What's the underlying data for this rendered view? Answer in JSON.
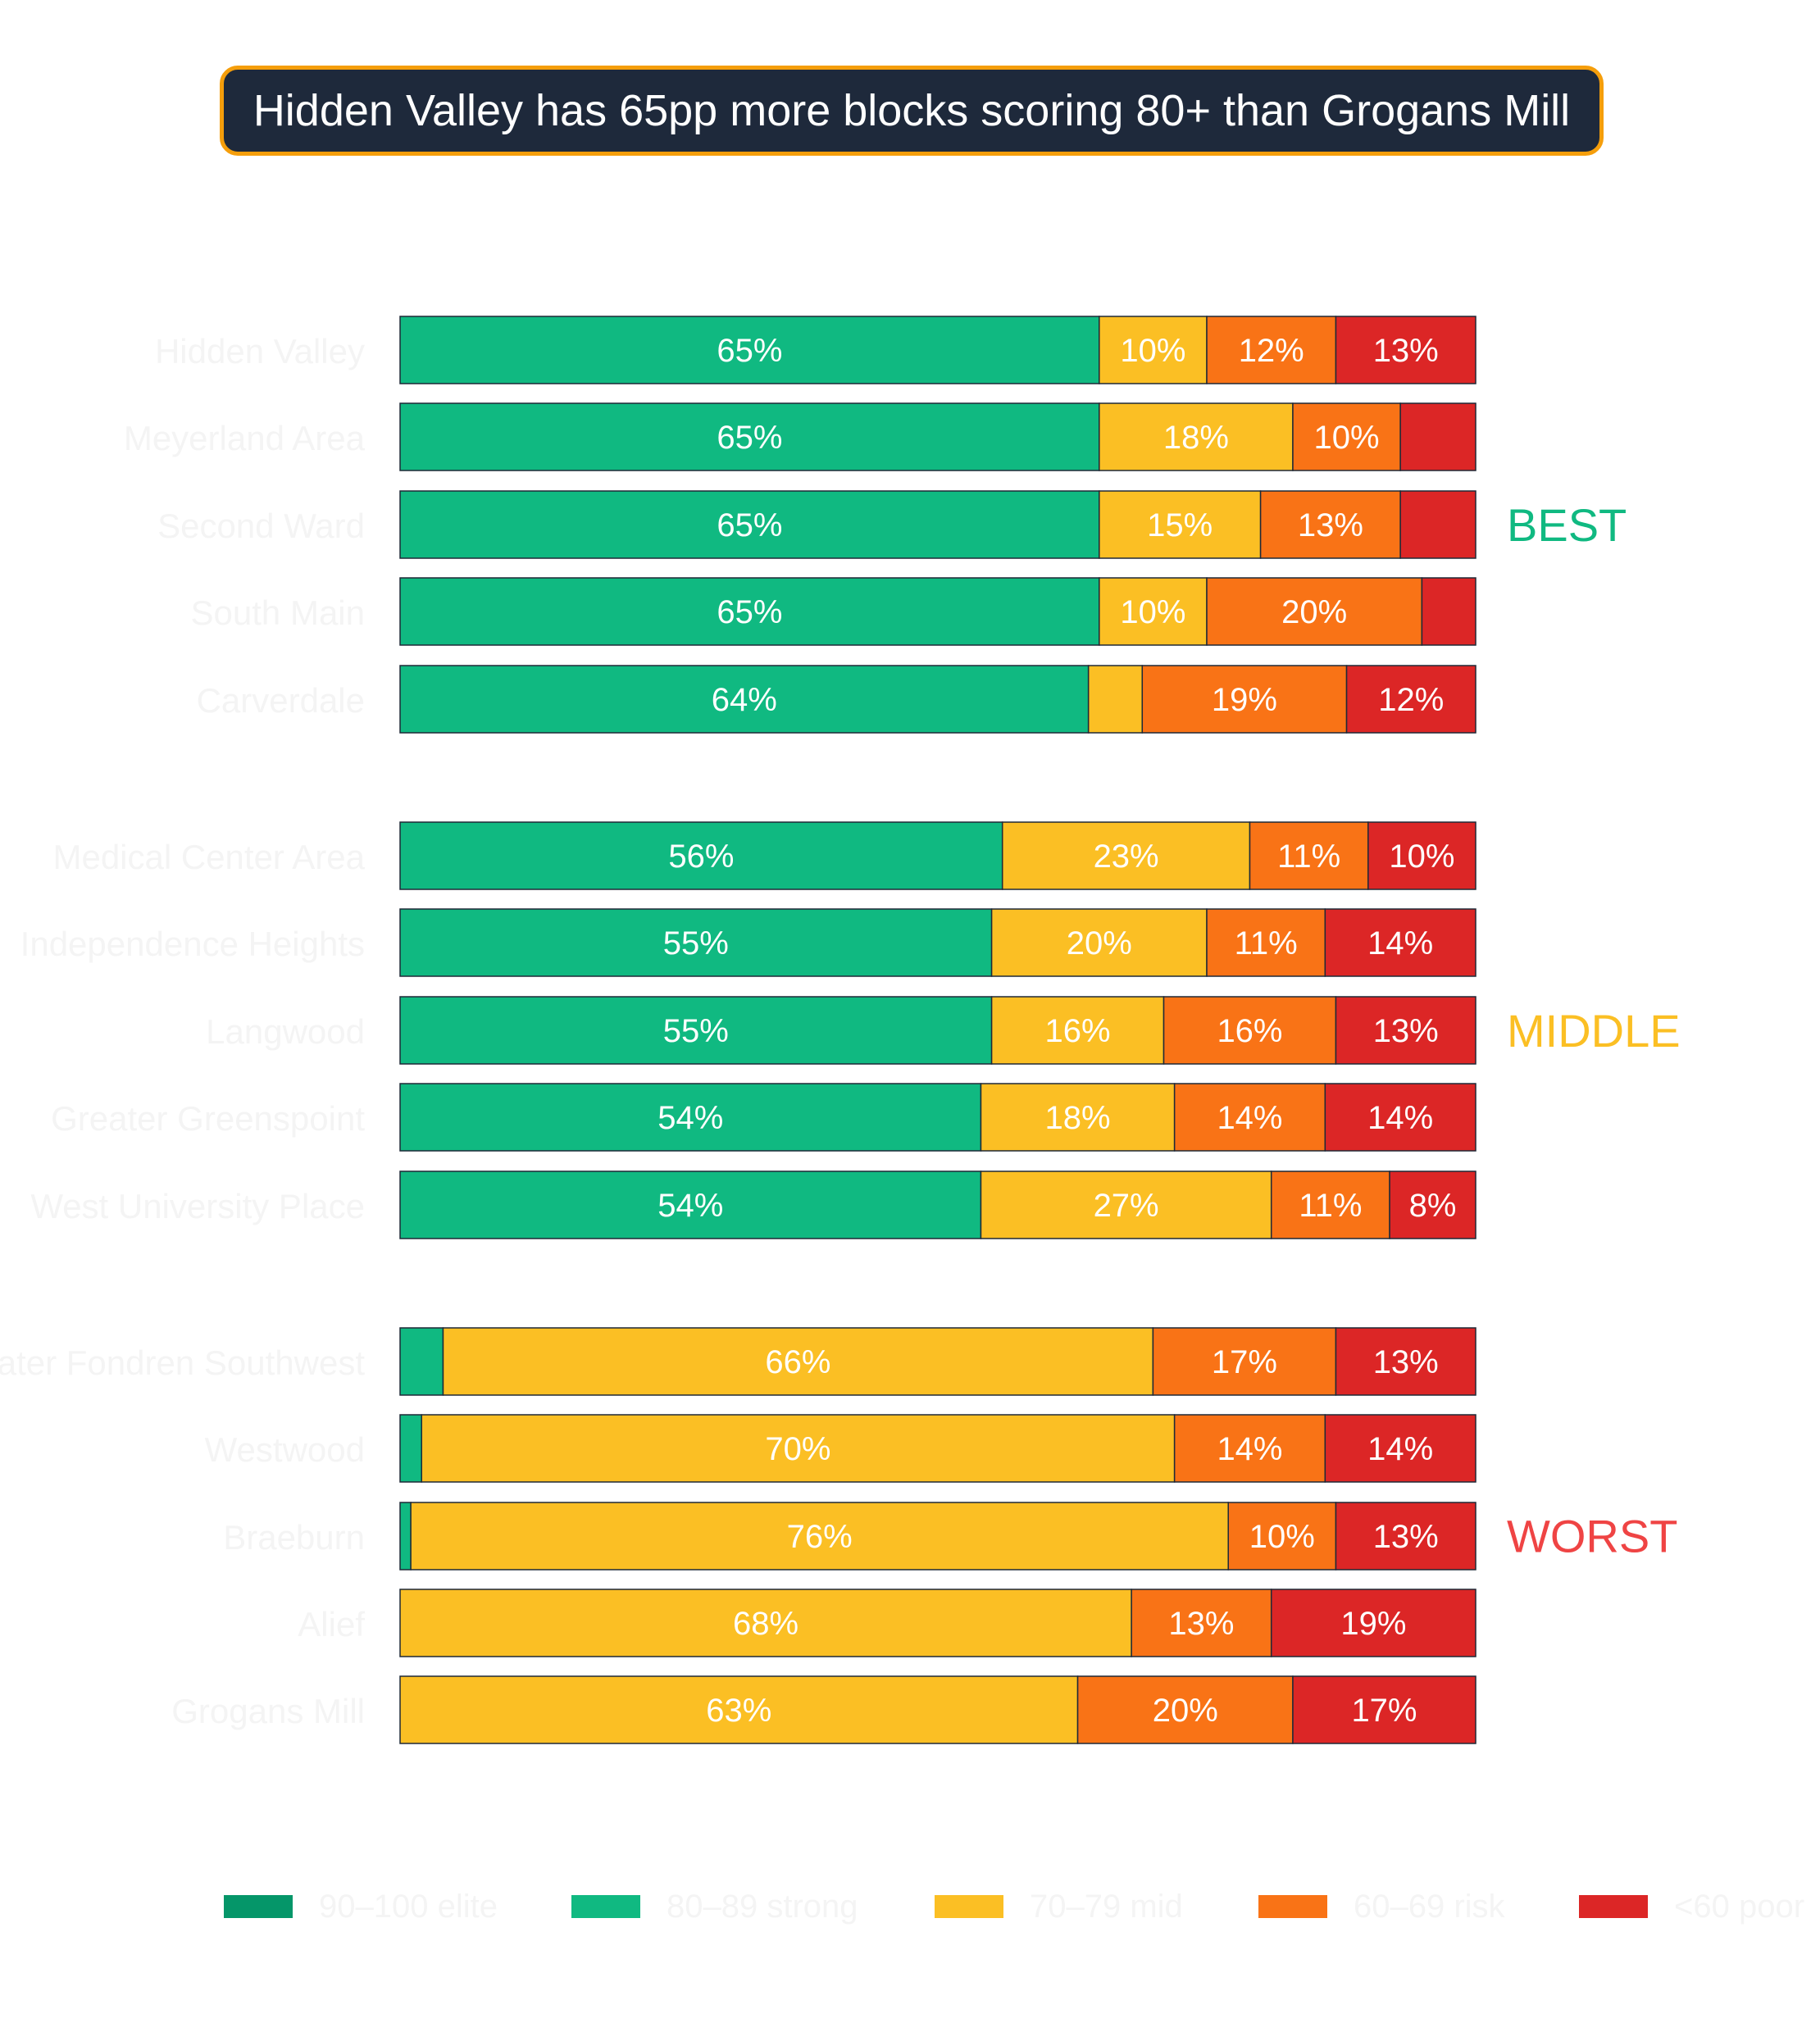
{
  "title": "Hidden Valley has 65pp more blocks scoring 80+ than Grogans Mill",
  "chart_data": {
    "type": "bar",
    "orientation": "horizontal",
    "stacked": true,
    "normalized": true,
    "title": "Hidden Valley has 65pp more blocks scoring 80+ than Grogans Mill",
    "categories": [
      "Hidden Valley",
      "Meyerland Area",
      "Second Ward",
      "South Main",
      "Carverdale",
      "Medical Center Area",
      "Independence Heights",
      "Langwood",
      "Greater Greenspoint",
      "West University Place",
      "Greater Fondren Southwest",
      "Westwood",
      "Braeburn",
      "Alief",
      "Grogans Mill"
    ],
    "groups": [
      {
        "label": "BEST",
        "color": "#10b981",
        "rows": [
          0,
          1,
          2,
          3,
          4
        ]
      },
      {
        "label": "MIDDLE",
        "color": "#fbbf24",
        "rows": [
          5,
          6,
          7,
          8,
          9
        ]
      },
      {
        "label": "WORST",
        "color": "#ef4444",
        "rows": [
          10,
          11,
          12,
          13,
          14
        ]
      }
    ],
    "series": [
      {
        "name": "90–100 elite",
        "color": "#059669",
        "values": [
          0,
          0,
          0,
          0,
          0,
          0,
          0,
          0,
          0,
          0,
          0,
          0,
          0,
          0,
          0
        ]
      },
      {
        "name": "80–89 strong",
        "color": "#10b981",
        "values": [
          65,
          65,
          65,
          65,
          64,
          56,
          55,
          55,
          54,
          54,
          4,
          2,
          1,
          0,
          0
        ]
      },
      {
        "name": "70–79 mid",
        "color": "#fbbf24",
        "values": [
          10,
          18,
          15,
          10,
          5,
          23,
          20,
          16,
          18,
          27,
          66,
          70,
          76,
          68,
          63
        ]
      },
      {
        "name": "60–69 risk",
        "color": "#f97316",
        "values": [
          12,
          10,
          13,
          20,
          19,
          11,
          11,
          16,
          14,
          11,
          17,
          14,
          10,
          13,
          20
        ]
      },
      {
        "name": "<60 poor",
        "color": "#dc2626",
        "values": [
          13,
          7,
          7,
          5,
          12,
          10,
          14,
          13,
          14,
          8,
          13,
          14,
          13,
          19,
          17
        ]
      }
    ],
    "label_threshold": 8,
    "xlim": [
      0,
      100
    ],
    "legend_position": "bottom"
  }
}
